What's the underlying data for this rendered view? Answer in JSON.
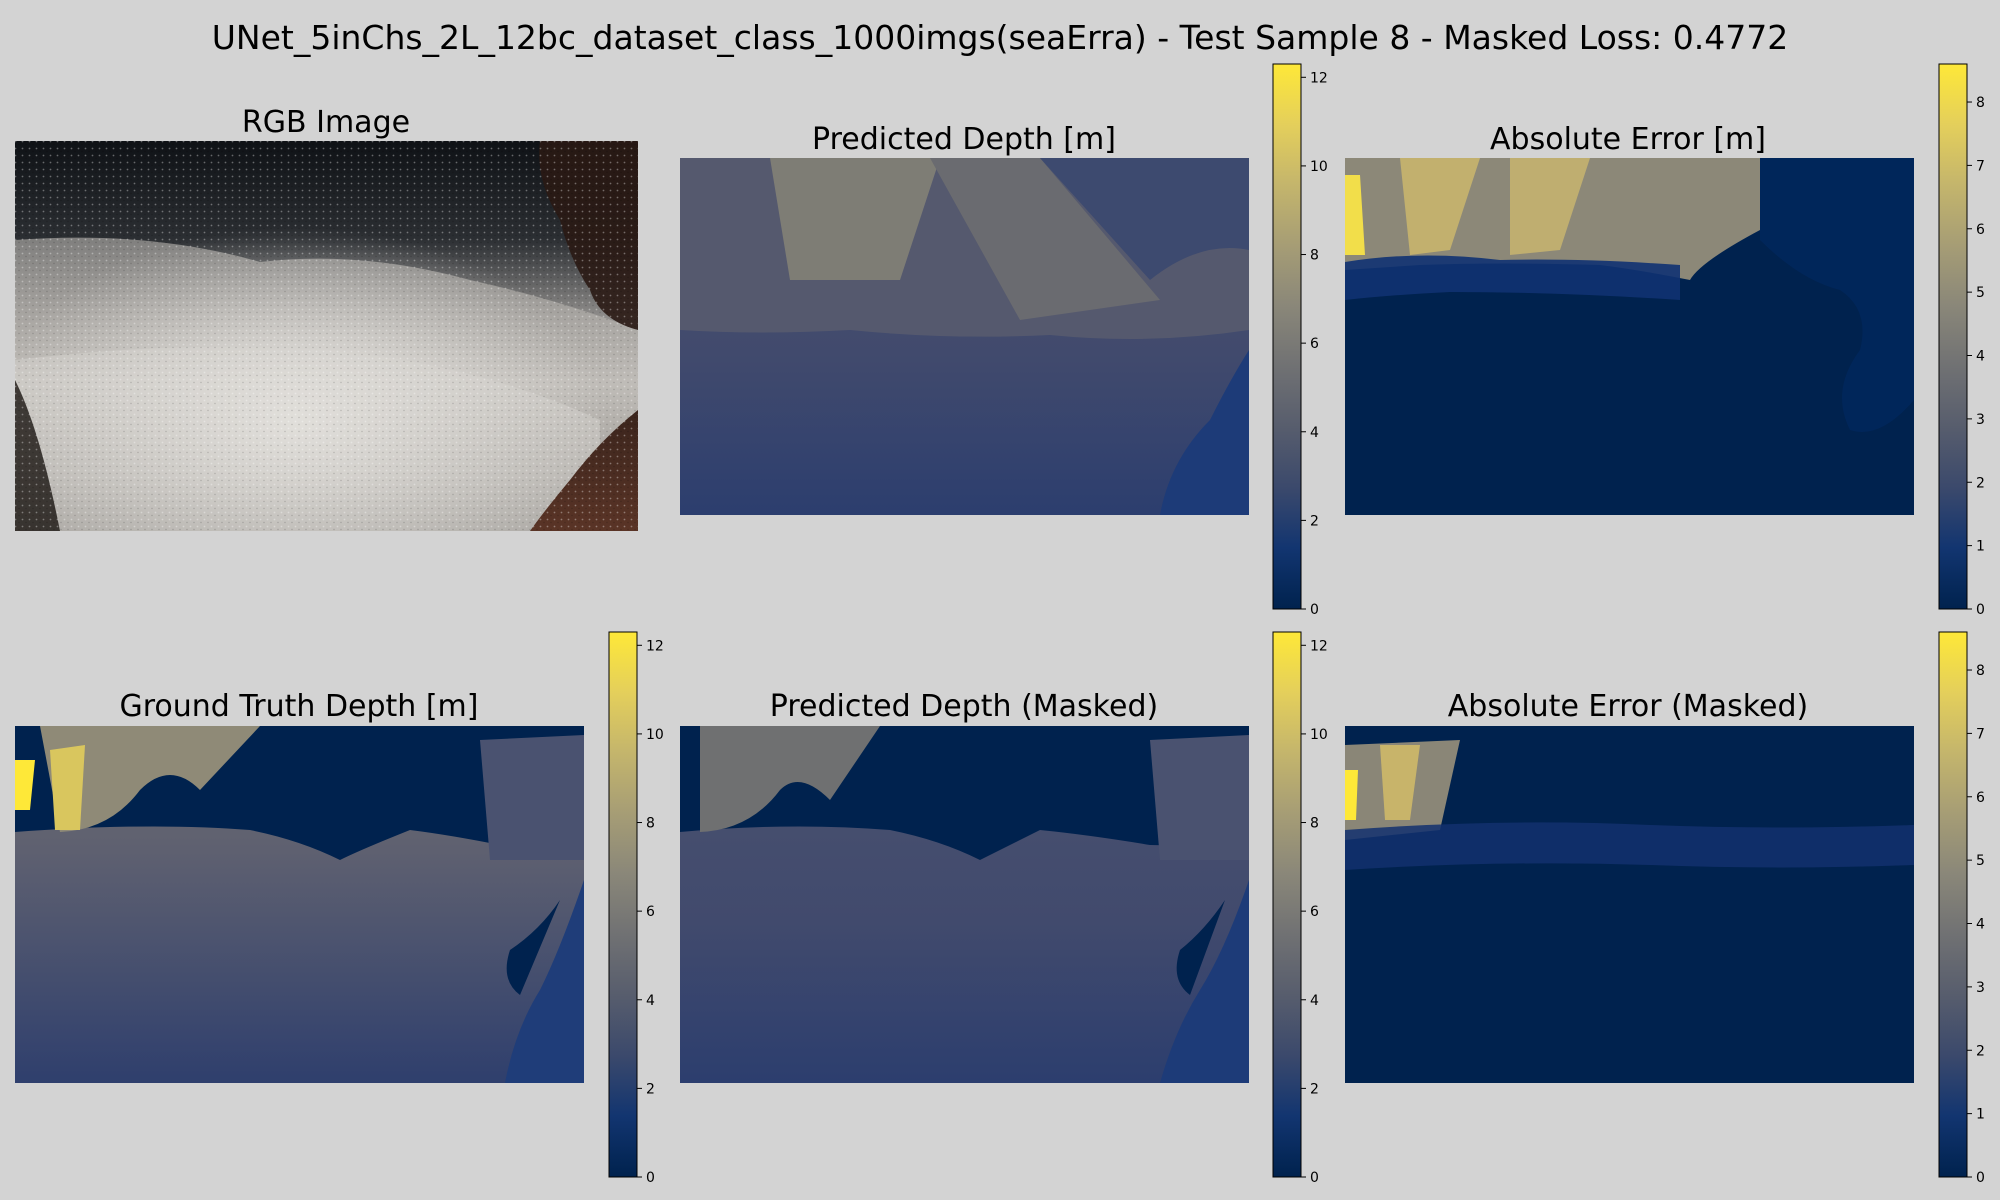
{
  "figure": {
    "title": "UNet_5inChs_2L_12bc_dataset_class_1000imgs(seaErra) - Test Sample 8 - Masked Loss: 0.4772",
    "background": "#d3d3d3",
    "colormap": "cividis",
    "colormap_stops": [
      "#00224e",
      "#123570",
      "#3b496c",
      "#575d6d",
      "#707173",
      "#8a8779",
      "#a69d75",
      "#c4b56c",
      "#e4cf5b",
      "#fee838"
    ]
  },
  "chart_data": [
    {
      "type": "image",
      "title": "RGB Image",
      "content": "underwater photo"
    },
    {
      "type": "heatmap",
      "title": "Predicted Depth [m]",
      "colorbar": {
        "ticks": [
          "0",
          "2",
          "4",
          "6",
          "8",
          "10",
          "12"
        ],
        "range": [
          0,
          12.3
        ]
      }
    },
    {
      "type": "heatmap",
      "title": "Absolute Error [m]",
      "colorbar": {
        "ticks": [
          "0",
          "1",
          "2",
          "3",
          "4",
          "5",
          "6",
          "7",
          "8"
        ],
        "range": [
          0,
          8.6
        ]
      }
    },
    {
      "type": "heatmap",
      "title": "Ground Truth Depth [m]",
      "colorbar": {
        "ticks": [
          "0",
          "2",
          "4",
          "6",
          "8",
          "10",
          "12"
        ],
        "range": [
          0,
          12.3
        ]
      }
    },
    {
      "type": "heatmap",
      "title": "Predicted Depth (Masked)",
      "colorbar": {
        "ticks": [
          "0",
          "2",
          "4",
          "6",
          "8",
          "10",
          "12"
        ],
        "range": [
          0,
          12.3
        ]
      }
    },
    {
      "type": "heatmap",
      "title": "Absolute Error (Masked)",
      "colorbar": {
        "ticks": [
          "0",
          "1",
          "2",
          "3",
          "4",
          "5",
          "6",
          "7",
          "8"
        ],
        "range": [
          0,
          8.6
        ]
      }
    }
  ]
}
